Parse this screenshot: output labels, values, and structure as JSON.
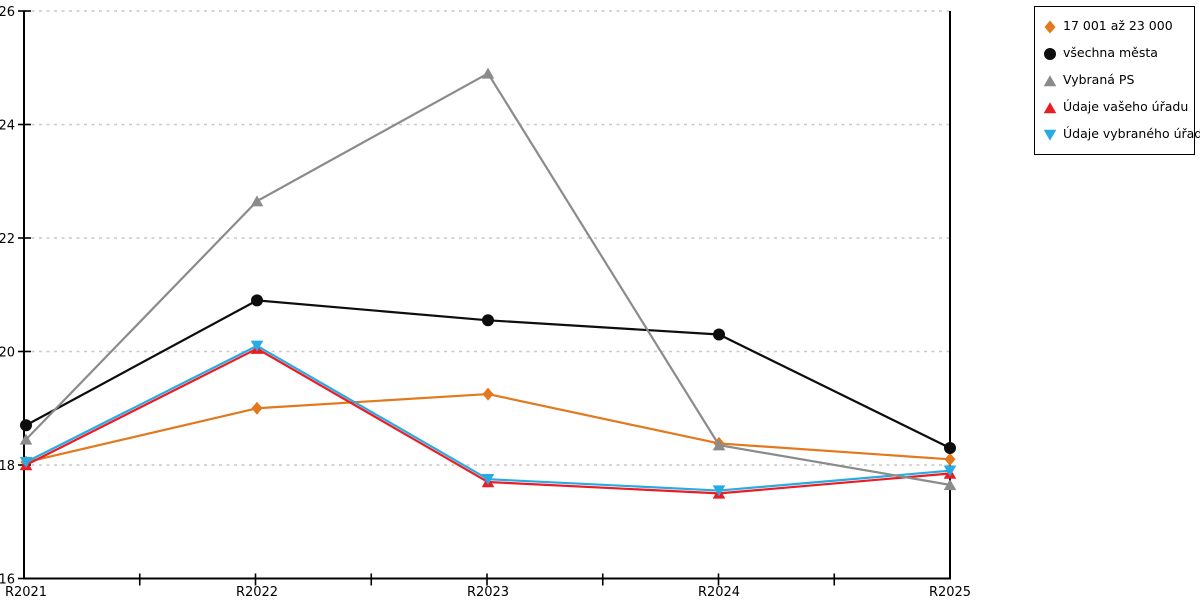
{
  "chart_data": {
    "type": "line",
    "title": "",
    "xlabel": "",
    "ylabel": "",
    "categories": [
      "R2021",
      "R2022",
      "R2023",
      "R2024",
      "R2025"
    ],
    "series": [
      {
        "name": "17 001 až 23 000",
        "marker": "diamond",
        "color": "#E2791D",
        "values": [
          18.05,
          19.0,
          19.25,
          18.38,
          18.1
        ]
      },
      {
        "name": "všechna města",
        "marker": "circle",
        "color": "#0d0d0d",
        "values": [
          18.7,
          20.9,
          20.55,
          20.3,
          18.3
        ]
      },
      {
        "name": "Vybraná PS",
        "marker": "triangle-up",
        "color": "#8B8B8B",
        "values": [
          18.45,
          22.65,
          24.9,
          18.35,
          17.65
        ]
      },
      {
        "name": "Údaje vašeho úřadu",
        "marker": "triangle-up",
        "color": "#EC1C24",
        "values": [
          18.0,
          20.05,
          17.7,
          17.5,
          17.85
        ]
      },
      {
        "name": "Údaje vybraného úřadu",
        "marker": "triangle-down",
        "color": "#29ABE2",
        "values": [
          18.05,
          20.1,
          17.75,
          17.55,
          17.9
        ]
      }
    ],
    "draw_order": [
      0,
      1,
      3,
      4,
      2
    ],
    "ylim": [
      16,
      26
    ],
    "yticks": [
      16,
      18,
      20,
      22,
      24,
      26
    ],
    "grid": "horizontal-dashed",
    "grid_color": "#c9c9c9",
    "axis_color": "#000000",
    "background": "#ffffff",
    "legend_position": "top-right"
  }
}
